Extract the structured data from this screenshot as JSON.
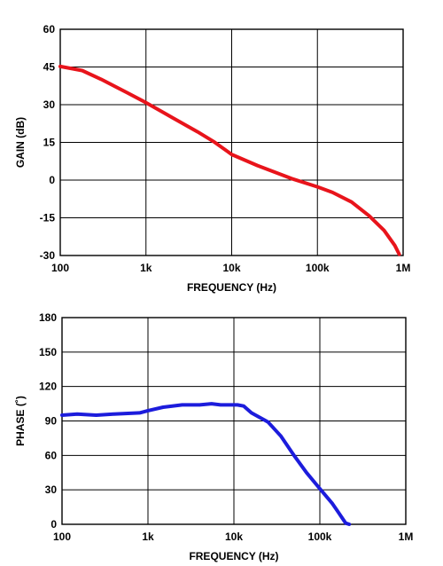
{
  "chart_data": [
    {
      "type": "line",
      "xlabel": "FREQUENCY (Hz)",
      "ylabel": "GAIN (dB)",
      "xscale": "log",
      "xlim": [
        100,
        1000000
      ],
      "ylim": [
        -30,
        60
      ],
      "grid": true,
      "xticks": [
        {
          "value": 100,
          "label": "100"
        },
        {
          "value": 1000,
          "label": "1k"
        },
        {
          "value": 10000,
          "label": "10k"
        },
        {
          "value": 100000,
          "label": "100k"
        },
        {
          "value": 1000000,
          "label": "1M"
        }
      ],
      "yticks": [
        {
          "value": -30,
          "label": "-30"
        },
        {
          "value": -15,
          "label": "-15"
        },
        {
          "value": 0,
          "label": "0"
        },
        {
          "value": 15,
          "label": "15"
        },
        {
          "value": 30,
          "label": "30"
        },
        {
          "value": 45,
          "label": "45"
        },
        {
          "value": 60,
          "label": "60"
        }
      ],
      "series": [
        {
          "color": "#e8141b",
          "x": [
            100,
            180,
            300,
            600,
            1000,
            2000,
            4000,
            6300,
            10000,
            20000,
            50000,
            100000,
            150000,
            250000,
            400000,
            600000,
            800000,
            900000
          ],
          "y": [
            45.2,
            43.6,
            40.1,
            34.8,
            30.8,
            25.0,
            19.2,
            15.1,
            10.2,
            5.8,
            0.6,
            -2.7,
            -4.9,
            -8.7,
            -14.2,
            -20.0,
            -26.0,
            -29.5
          ]
        }
      ]
    },
    {
      "type": "line",
      "xlabel": "FREQUENCY (Hz)",
      "ylabel": "PHASE (˚)",
      "xscale": "log",
      "xlim": [
        100,
        1000000
      ],
      "ylim": [
        0,
        180
      ],
      "grid": true,
      "xticks": [
        {
          "value": 100,
          "label": "100"
        },
        {
          "value": 1000,
          "label": "1k"
        },
        {
          "value": 10000,
          "label": "10k"
        },
        {
          "value": 100000,
          "label": "100k"
        },
        {
          "value": 1000000,
          "label": "1M"
        }
      ],
      "yticks": [
        {
          "value": 0,
          "label": "0"
        },
        {
          "value": 30,
          "label": "30"
        },
        {
          "value": 60,
          "label": "60"
        },
        {
          "value": 90,
          "label": "90"
        },
        {
          "value": 120,
          "label": "120"
        },
        {
          "value": 150,
          "label": "150"
        },
        {
          "value": 180,
          "label": "180"
        }
      ],
      "series": [
        {
          "color": "#1c1cdc",
          "x": [
            100,
            150,
            250,
            400,
            800,
            1000,
            1500,
            2500,
            4000,
            5500,
            7000,
            9000,
            11000,
            13000,
            16000,
            25000,
            35000,
            50000,
            70000,
            100000,
            140000,
            180000,
            200000,
            220000
          ],
          "y": [
            95,
            96,
            95,
            96,
            97,
            99,
            102,
            104,
            104,
            105,
            104,
            104,
            104,
            103,
            97,
            89,
            77,
            60,
            45,
            31,
            18,
            6,
            1,
            0
          ]
        }
      ]
    }
  ]
}
